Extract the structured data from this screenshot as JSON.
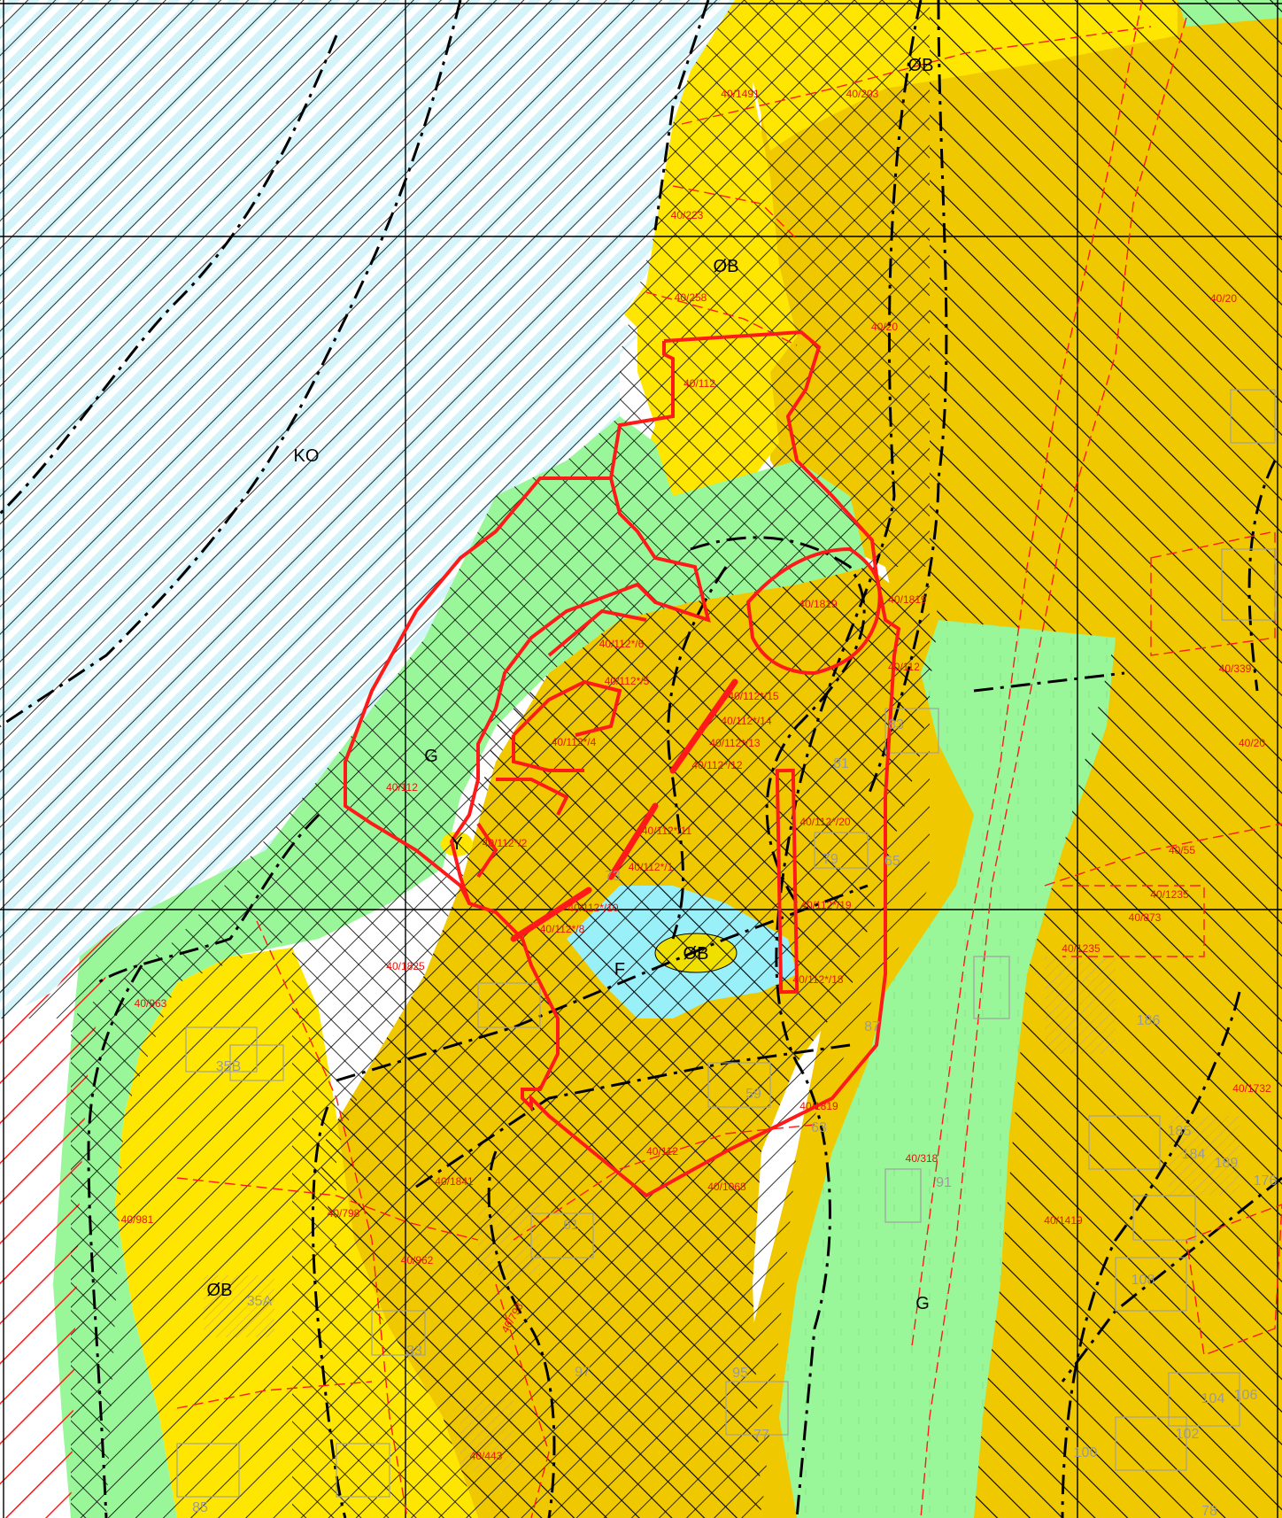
{
  "colors": {
    "water_zone": "#d4f4fa",
    "green_zone": "#99f799",
    "yellow_zone": "#ffe600",
    "ochre_zone": "#f0c800",
    "lake": "#99f0f8",
    "plan_boundary": "#ff1a1a",
    "hatch": "#000000",
    "grid": "#000000",
    "building_outline": "#a0a0a0"
  },
  "zone_labels": {
    "ko": "KO",
    "g_west": "G",
    "g_south": "G",
    "y": "Y",
    "f": "F",
    "ob_north": "ØB",
    "ob_mid": "ØB",
    "ob_island": "ØB",
    "ob_southwest": "ØB"
  },
  "parcel_labels": [
    "40/1491",
    "40/203",
    "40/223",
    "40/258",
    "40/20",
    "40/20",
    "40/112",
    "40/1819",
    "40/1819",
    "40/112*/6",
    "40/112*/5",
    "40/112",
    "40/339",
    "40/112*/15",
    "40/112*/14",
    "40/112*/13",
    "40/112*/12",
    "40/112*/4",
    "40/112",
    "40/20",
    "40/112*/2",
    "40/112*/11",
    "40/112*/20",
    "40/112*/1",
    "40/55",
    "40/112*/10",
    "40/112*/8",
    "40/112*/19",
    "40/1235",
    "40/873",
    "40/1825",
    "40/1235",
    "40/963",
    "40/112*/18",
    "40/1732",
    "40/1819",
    "40/112",
    "40/318",
    "40/1841",
    "40/1068",
    "40/981",
    "40/798",
    "40/1419",
    "40/962",
    "40/443",
    "40/798"
  ],
  "house_numbers": [
    "81",
    "83",
    "79",
    "65",
    "35B",
    "73",
    "59",
    "87",
    "186",
    "185",
    "184",
    "189",
    "176",
    "63",
    "61",
    "35A",
    "33",
    "97",
    "95",
    "91",
    "108",
    "104",
    "106",
    "102",
    "100",
    "85",
    "78",
    "77"
  ]
}
